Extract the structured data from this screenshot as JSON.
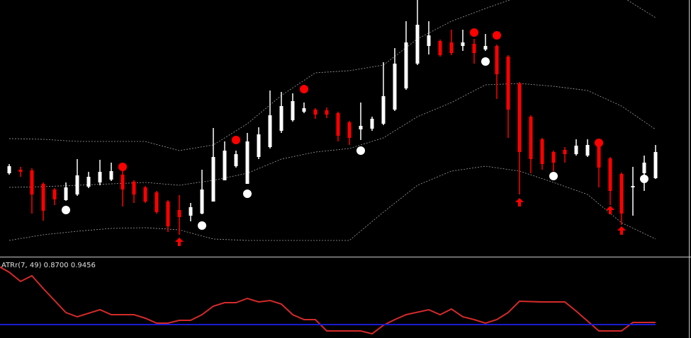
{
  "chart_data": [
    {
      "type": "candlestick",
      "open": [
        117,
        122,
        121,
        102,
        94,
        79,
        87,
        98,
        104,
        108,
        115,
        105,
        97,
        90,
        77,
        65,
        57,
        60,
        77,
        107,
        127,
        102,
        140,
        154,
        177,
        192,
        204,
        207,
        206,
        202,
        189,
        179,
        180,
        187,
        207,
        237,
        272,
        297,
        304,
        302,
        297,
        300,
        292,
        297,
        282,
        244,
        197,
        165,
        147,
        150,
        144,
        142,
        155,
        138,
        116,
        97,
        117,
        110
      ],
      "high": [
        130,
        126,
        124,
        104,
        96,
        104,
        137,
        119,
        136,
        132,
        120,
        107,
        99,
        92,
        79,
        86,
        75,
        122,
        181,
        162,
        149,
        174,
        182,
        234,
        232,
        230,
        217,
        209,
        210,
        204,
        191,
        217,
        197,
        274,
        294,
        332,
        362,
        332,
        306,
        320,
        320,
        307,
        314,
        299,
        284,
        246,
        199,
        167,
        149,
        154,
        165,
        165,
        157,
        140,
        118,
        126,
        142,
        157
      ],
      "low": [
        115,
        112,
        60,
        50,
        72,
        78,
        85,
        96,
        100,
        106,
        70,
        75,
        75,
        60,
        34,
        30,
        49,
        59,
        77,
        107,
        125,
        102,
        137,
        152,
        174,
        190,
        202,
        194,
        195,
        162,
        157,
        164,
        177,
        185,
        205,
        235,
        270,
        285,
        282,
        284,
        290,
        272,
        290,
        222,
        167,
        87,
        117,
        122,
        120,
        132,
        142,
        140,
        97,
        72,
        44,
        57,
        92,
        109
      ],
      "close": [
        127,
        119,
        87,
        64,
        80,
        97,
        114,
        112,
        119,
        120,
        94,
        87,
        77,
        62,
        42,
        55,
        69,
        94,
        140,
        149,
        144,
        162,
        172,
        199,
        212,
        219,
        209,
        200,
        200,
        170,
        167,
        184,
        194,
        226,
        272,
        302,
        327,
        312,
        284,
        287,
        302,
        287,
        297,
        257,
        207,
        147,
        137,
        130,
        132,
        144,
        156,
        157,
        125,
        92,
        60,
        99,
        132,
        147
      ],
      "up_color": "#ffffff",
      "down_color": "#ff0000",
      "ylim": [
        0,
        362
      ],
      "bands": [
        {
          "color": "#a0a0a0",
          "x": [
            0,
            3,
            6,
            9,
            12,
            15,
            18,
            21,
            24,
            27,
            30,
            33,
            36,
            39,
            42,
            45,
            48,
            51,
            54,
            57
          ],
          "values": [
            166,
            165,
            162,
            162,
            162,
            149,
            157,
            187,
            227,
            259,
            262,
            270,
            307,
            332,
            350,
            367,
            374,
            374,
            367,
            337
          ]
        },
        {
          "color": "#a0a0a0",
          "x": [
            0,
            3,
            6,
            9,
            12,
            15,
            18,
            21,
            24,
            27,
            30,
            33,
            36,
            39,
            42,
            45,
            48,
            51,
            54,
            57
          ],
          "values": [
            97,
            98,
            100,
            102,
            104,
            100,
            107,
            117,
            137,
            147,
            152,
            167,
            197,
            217,
            242,
            244,
            240,
            234,
            212,
            179
          ]
        },
        {
          "color": "#a0a0a0",
          "x": [
            0,
            3,
            6,
            9,
            12,
            15,
            18,
            21,
            24,
            27,
            30,
            33,
            36,
            39,
            42,
            45,
            48,
            51,
            54,
            57
          ],
          "values": [
            22,
            30,
            35,
            39,
            40,
            37,
            24,
            22,
            22,
            22,
            22,
            62,
            100,
            120,
            127,
            120,
            104,
            87,
            47,
            24
          ]
        }
      ],
      "markers": [
        {
          "shape": "dot",
          "color": "#ff0000",
          "x": [
            10,
            20,
            26,
            41,
            43,
            52
          ],
          "values": [
            126,
            164,
            236,
            316,
            312,
            160
          ]
        },
        {
          "shape": "dot",
          "color": "#ffffff",
          "x": [
            5,
            17,
            21,
            31,
            42,
            48,
            56
          ],
          "values": [
            65,
            43,
            88,
            149,
            275,
            113,
            109
          ]
        },
        {
          "shape": "arrow",
          "color": "#ff0000",
          "x": [
            15,
            45,
            53,
            54
          ],
          "values": [
            20,
            76,
            65,
            36
          ]
        }
      ]
    },
    {
      "type": "line",
      "title": "ATRr(7, 49) 0.8700 0.9456",
      "ylim": [
        0,
        112
      ],
      "series": [
        {
          "color": "#d42a2a",
          "x": [
            -1,
            0,
            1,
            2,
            3,
            4,
            5,
            6,
            8,
            9,
            11,
            12,
            13,
            14,
            15,
            16,
            17,
            18,
            19,
            20,
            21,
            22,
            23,
            24,
            25,
            26,
            27,
            28,
            31,
            32,
            33,
            34,
            35,
            37,
            38,
            39,
            40,
            41,
            42,
            43,
            44,
            45,
            47,
            49,
            50,
            52,
            54,
            55,
            57
          ],
          "values": [
            102,
            93,
            80,
            88,
            70,
            53,
            36,
            30,
            40,
            33,
            33,
            28,
            21,
            21,
            25,
            25,
            33,
            45,
            50,
            50,
            56,
            51,
            53,
            48,
            33,
            26,
            26,
            10,
            10,
            6,
            18,
            26,
            33,
            40,
            33,
            41,
            30,
            26,
            21,
            26,
            36,
            52,
            51,
            51,
            38,
            10,
            10,
            22,
            22
          ]
        },
        {
          "color": "#1a1ad0",
          "x": [
            -1,
            57
          ],
          "values": [
            19,
            19
          ]
        }
      ]
    }
  ]
}
